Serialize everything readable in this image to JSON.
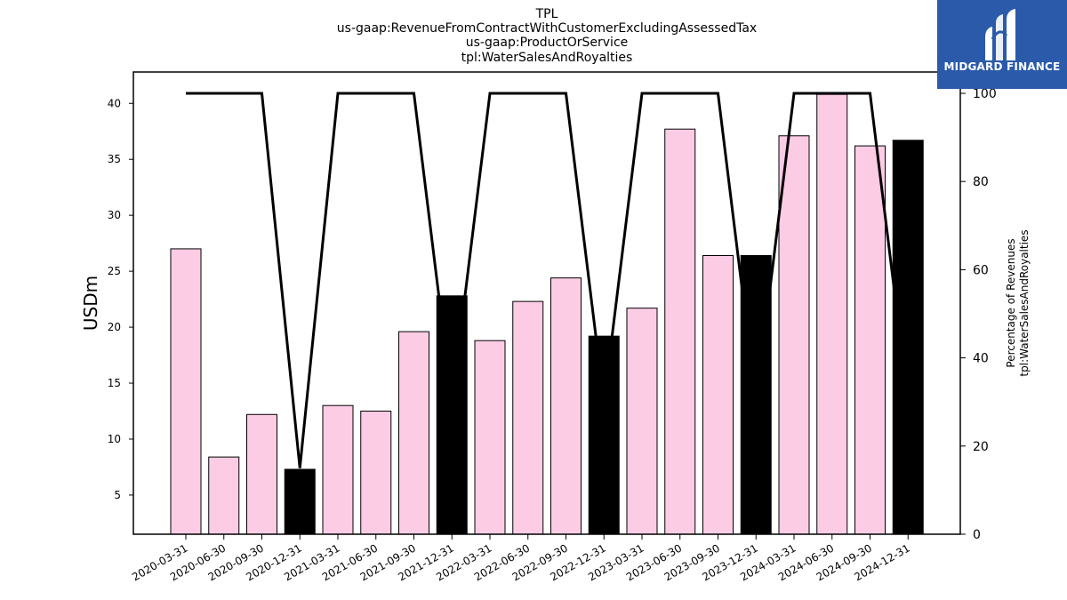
{
  "chart_data": {
    "type": "bar",
    "title_lines": [
      "TPL",
      "us-gaap:RevenueFromContractWithCustomerExcludingAssessedTax",
      "us-gaap:ProductOrService",
      "tpl:WaterSalesAndRoyalties"
    ],
    "ylabel": "USDm",
    "y2label_lines": [
      "Percentage of Revenues",
      "tpl:WaterSalesAndRoyalties"
    ],
    "ylim": [
      1.5,
      42.8
    ],
    "y_ticks": [
      "5",
      "10",
      "15",
      "20",
      "25",
      "30",
      "35",
      "40"
    ],
    "y2lim": [
      0,
      100
    ],
    "y2_ticks": [
      "0",
      "20",
      "40",
      "60",
      "80",
      "100"
    ],
    "categories": [
      "2020-03-31",
      "2020-06-30",
      "2020-09-30",
      "2020-12-31",
      "2021-03-31",
      "2021-06-30",
      "2021-09-30",
      "2021-12-31",
      "2022-03-31",
      "2022-06-30",
      "2022-09-30",
      "2022-12-31",
      "2023-03-31",
      "2023-06-30",
      "2023-09-30",
      "2023-12-31",
      "2024-03-31",
      "2024-06-30",
      "2024-09-30",
      "2024-12-31"
    ],
    "values": [
      27.0,
      8.4,
      12.2,
      7.3,
      13.0,
      12.5,
      19.6,
      22.8,
      18.8,
      22.3,
      24.4,
      19.2,
      21.7,
      37.7,
      26.4,
      26.4,
      37.1,
      40.8,
      36.2,
      36.7
    ],
    "bar_colors": [
      "#fccce5",
      "#fccce5",
      "#fccce5",
      "#000000",
      "#fccce5",
      "#fccce5",
      "#fccce5",
      "#000000",
      "#fccce5",
      "#fccce5",
      "#fccce5",
      "#000000",
      "#fccce5",
      "#fccce5",
      "#fccce5",
      "#000000",
      "#fccce5",
      "#fccce5",
      "#fccce5",
      "#000000"
    ],
    "percentage_line": [
      100,
      100,
      100,
      15,
      100,
      100,
      100,
      30,
      100,
      100,
      100,
      30,
      100,
      100,
      100,
      30,
      100,
      100,
      100,
      30
    ]
  },
  "logo": {
    "text": "MIDGARD FINANCE",
    "background": "#2b5aab"
  }
}
